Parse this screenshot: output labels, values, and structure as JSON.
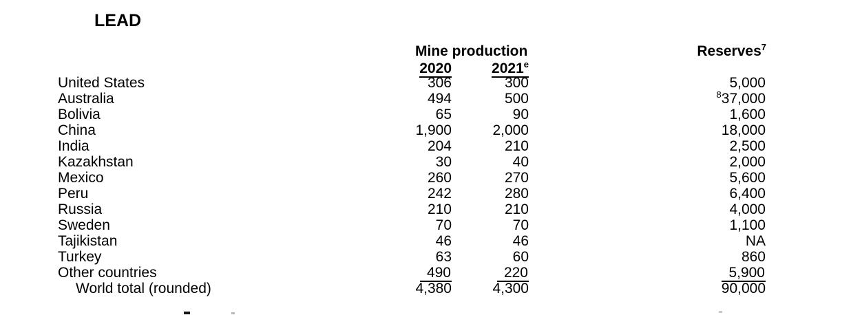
{
  "title": "LEAD",
  "colors": {
    "text": "#000000",
    "background": "#ffffff"
  },
  "table": {
    "col_headers": {
      "group": "Mine production",
      "year_2020": "2020",
      "year_2021": "2021",
      "year_2021_sup": "e",
      "reserves": "Reserves",
      "reserves_sup": "7"
    },
    "rows": [
      {
        "country": "United States",
        "p2020": "306",
        "p2021": "300",
        "reserves": "5,000"
      },
      {
        "country": "Australia",
        "p2020": "494",
        "p2021": "500",
        "reserves": "37,000",
        "reserves_sup": "8"
      },
      {
        "country": "Bolivia",
        "p2020": "65",
        "p2021": "90",
        "reserves": "1,600"
      },
      {
        "country": "China",
        "p2020": "1,900",
        "p2021": "2,000",
        "reserves": "18,000"
      },
      {
        "country": "India",
        "p2020": "204",
        "p2021": "210",
        "reserves": "2,500"
      },
      {
        "country": "Kazakhstan",
        "p2020": "30",
        "p2021": "40",
        "reserves": "2,000"
      },
      {
        "country": "Mexico",
        "p2020": "260",
        "p2021": "270",
        "reserves": "5,600"
      },
      {
        "country": "Peru",
        "p2020": "242",
        "p2021": "280",
        "reserves": "6,400"
      },
      {
        "country": "Russia",
        "p2020": "210",
        "p2021": "210",
        "reserves": "4,000"
      },
      {
        "country": "Sweden",
        "p2020": "70",
        "p2021": "70",
        "reserves": "1,100"
      },
      {
        "country": "Tajikistan",
        "p2020": "46",
        "p2021": "46",
        "reserves": "NA"
      },
      {
        "country": "Turkey",
        "p2020": "63",
        "p2021": "60",
        "reserves": "860"
      },
      {
        "country": "Other countries",
        "p2020": "490",
        "p2021": "220",
        "reserves": "5,900",
        "underline": true
      },
      {
        "country": "World total (rounded)",
        "p2020": "4,380",
        "p2021": "4,300",
        "reserves": "90,000",
        "indent": true
      }
    ]
  }
}
